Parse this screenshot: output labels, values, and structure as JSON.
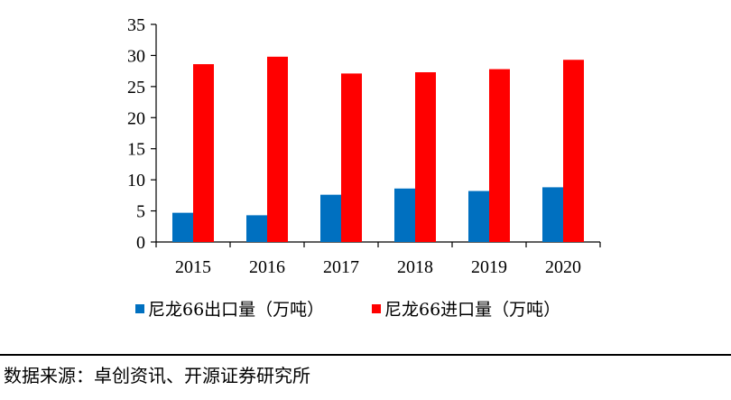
{
  "chart_data": {
    "type": "bar",
    "categories": [
      "2015",
      "2016",
      "2017",
      "2018",
      "2019",
      "2020"
    ],
    "series": [
      {
        "name": "尼龙66出口量（万吨）",
        "color": "#0070C0",
        "values": [
          4.7,
          4.3,
          7.6,
          8.6,
          8.2,
          8.8
        ]
      },
      {
        "name": "尼龙66进口量（万吨）",
        "color": "#FF0000",
        "values": [
          28.6,
          29.8,
          27.1,
          27.3,
          27.8,
          29.3
        ]
      }
    ],
    "ylim": [
      0,
      35
    ],
    "yticks": [
      "0",
      "5",
      "10",
      "15",
      "20",
      "25",
      "30",
      "35"
    ],
    "xlabel": "",
    "ylabel": "",
    "grid": false,
    "legend": "bottom"
  },
  "source": "数据来源：卓创资讯、开源证券研究所"
}
